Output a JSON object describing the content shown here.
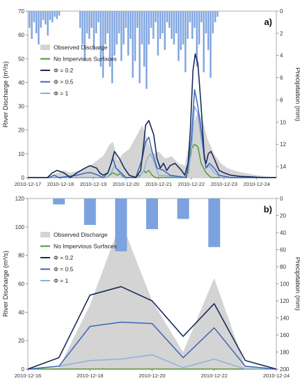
{
  "chart_data": [
    {
      "type": "line",
      "panel_label": "a)",
      "ylabel": "River Discharge (m³/s)",
      "y2label": "Precipitation (mm)",
      "ylim": [
        0,
        70
      ],
      "y_ticks": [
        0,
        10,
        20,
        30,
        40,
        50,
        60,
        70
      ],
      "y2lim": [
        15,
        0
      ],
      "y2_ticks": [
        0,
        2,
        4,
        6,
        8,
        10,
        12,
        14
      ],
      "xlim": [
        17,
        24.6
      ],
      "x_ticks": [
        17,
        18,
        19,
        20,
        21,
        22,
        23,
        24
      ],
      "x_tick_labels": [
        "2010-12-17",
        "2010-12-18",
        "2010-12-19",
        "2010-12-20",
        "2010-12-21",
        "2010-12-22",
        "2010-12-23",
        "2010-12-24"
      ],
      "legend": "upper-left",
      "colors": {
        "observed": "#d4d4d4",
        "no_impervious": "#4a9a2a",
        "phi02": "#1a2a5a",
        "phi05": "#3a66b8",
        "phi1": "#8aaee0",
        "precip": "#7ca3df"
      },
      "series": [
        {
          "name": "Observed Discharge",
          "style": "area",
          "x": [
            17,
            17.6,
            17.9,
            18.1,
            18.3,
            18.6,
            18.9,
            19.1,
            19.3,
            19.5,
            19.6,
            19.75,
            19.9,
            20.1,
            20.3,
            20.5,
            20.7,
            20.85,
            21.0,
            21.2,
            21.4,
            21.6,
            21.8,
            21.95,
            22.05,
            22.2,
            22.35,
            22.5,
            22.7,
            22.9,
            23.1,
            23.3,
            23.6,
            24.0,
            24.6
          ],
          "y": [
            0,
            0,
            2,
            3,
            2,
            3,
            5,
            7,
            9,
            14,
            15,
            7,
            10,
            12,
            17,
            22,
            14,
            10,
            11,
            8,
            9,
            6,
            5,
            15,
            22,
            28,
            24,
            16,
            10,
            6,
            4,
            3,
            2,
            1,
            0
          ]
        },
        {
          "name": "No Impervious Surfaces",
          "x": [
            17,
            19.4,
            19.5,
            19.6,
            19.75,
            19.85,
            19.95,
            20.2,
            20.45,
            20.55,
            20.6,
            20.7,
            20.8,
            20.9,
            21.15,
            21.8,
            21.9,
            22.0,
            22.1,
            22.2,
            22.3,
            22.45,
            22.6,
            22.9,
            24.6
          ],
          "y": [
            0,
            0,
            1,
            2,
            1,
            2,
            0,
            0,
            1,
            3,
            2,
            3,
            1,
            0,
            0,
            0,
            2,
            12,
            14,
            13,
            6,
            2,
            0,
            0,
            0
          ]
        },
        {
          "name": "Φ = 0.2",
          "x": [
            17,
            17.3,
            17.6,
            17.75,
            17.9,
            18.1,
            18.3,
            18.5,
            18.75,
            18.9,
            19.1,
            19.2,
            19.3,
            19.45,
            19.55,
            19.65,
            19.8,
            19.95,
            20.1,
            20.3,
            20.45,
            20.55,
            20.6,
            20.7,
            20.85,
            20.95,
            21.05,
            21.15,
            21.25,
            21.35,
            21.5,
            21.7,
            21.8,
            21.9,
            21.97,
            22.05,
            22.12,
            22.2,
            22.3,
            22.4,
            22.45,
            22.52,
            22.6,
            22.7,
            22.85,
            23.0,
            23.2,
            23.5,
            23.8,
            24.2,
            24.6
          ],
          "y": [
            0,
            0,
            0,
            2,
            3,
            2,
            0,
            2,
            4,
            5,
            4,
            2,
            1,
            2,
            6,
            11,
            8,
            4,
            1,
            0,
            3,
            15,
            22,
            24,
            18,
            8,
            4,
            6,
            3,
            5,
            6,
            3,
            1,
            6,
            20,
            45,
            52,
            48,
            30,
            8,
            6,
            10,
            11,
            8,
            3,
            2,
            1,
            0.5,
            0.3,
            0,
            0
          ]
        },
        {
          "name": "Φ = 0.5",
          "x": [
            17,
            17.65,
            17.8,
            17.95,
            18.5,
            18.8,
            18.95,
            19.15,
            19.3,
            19.45,
            19.6,
            19.7,
            19.85,
            20.0,
            20.3,
            20.5,
            20.6,
            20.7,
            20.8,
            20.95,
            21.15,
            21.25,
            21.35,
            21.85,
            22.0,
            22.1,
            22.2,
            22.3,
            22.45,
            22.55,
            22.7,
            22.85,
            23.2,
            24.6
          ],
          "y": [
            0,
            0,
            1,
            0,
            1,
            2,
            2,
            1,
            0,
            2,
            8,
            4,
            2,
            0,
            0,
            8,
            15,
            17,
            11,
            4,
            3,
            2,
            1,
            0,
            16,
            37,
            30,
            20,
            4,
            6,
            4,
            1,
            0,
            0
          ]
        },
        {
          "name": "Φ = 1",
          "x": [
            17,
            19.4,
            19.55,
            19.65,
            19.75,
            19.9,
            20.4,
            20.55,
            20.65,
            20.75,
            20.85,
            21.0,
            21.85,
            22.0,
            22.1,
            22.2,
            22.3,
            22.45,
            22.55,
            22.7,
            22.9,
            24.6
          ],
          "y": [
            0,
            0,
            2,
            5,
            3,
            0,
            0,
            3,
            8,
            10,
            7,
            1,
            0,
            10,
            30,
            27,
            16,
            4,
            5,
            2,
            0,
            0
          ]
        },
        {
          "name": "Precipitation",
          "style": "bars-inverted",
          "x": [
            17.05,
            17.12,
            17.19,
            17.26,
            17.33,
            17.4,
            17.47,
            17.54,
            17.61,
            17.68,
            17.75,
            17.82,
            17.89,
            17.96,
            18.6,
            18.67,
            18.74,
            18.81,
            18.88,
            18.95,
            19.02,
            19.09,
            19.16,
            19.23,
            19.3,
            19.37,
            19.44,
            19.51,
            19.58,
            19.65,
            19.72,
            19.79,
            19.86,
            19.93,
            20.0,
            20.07,
            20.14,
            20.21,
            20.28,
            20.35,
            20.42,
            20.49,
            20.56,
            20.63,
            20.7,
            20.77,
            20.84,
            20.91,
            20.98,
            21.05,
            21.12,
            21.19,
            21.26,
            21.33,
            21.4,
            21.47,
            21.54,
            21.61,
            21.68,
            21.75,
            21.82,
            21.89,
            21.96,
            22.03,
            22.1,
            22.17,
            22.24,
            22.31,
            22.38,
            22.45,
            22.52,
            22.59,
            22.66,
            22.73,
            22.8
          ],
          "y": [
            1.5,
            2.5,
            1.0,
            2.0,
            3.0,
            1.5,
            0.8,
            1.2,
            2.2,
            0.8,
            1.0,
            0.5,
            0.7,
            0.4,
            1.5,
            3.0,
            4.5,
            2.0,
            2.5,
            1.5,
            3.5,
            2.0,
            1.0,
            5.0,
            6.0,
            3.0,
            2.0,
            5.0,
            6.5,
            4.0,
            3.0,
            2.0,
            4.5,
            3.0,
            1.5,
            4.0,
            2.5,
            6.0,
            4.5,
            1.5,
            6.5,
            3.0,
            5.0,
            7.0,
            3.0,
            1.5,
            2.5,
            1.0,
            4.0,
            2.5,
            2.0,
            3.5,
            1.0,
            1.5,
            2.5,
            3.0,
            2.0,
            4.5,
            3.5,
            3.0,
            5.5,
            2.5,
            1.0,
            2.5,
            1.5,
            5.0,
            3.0,
            1.0,
            5.5,
            2.0,
            3.5,
            6.0,
            2.0,
            1.0,
            0.5
          ]
        }
      ]
    },
    {
      "type": "line",
      "panel_label": "b)",
      "ylabel": "River Discharge (m³/s)",
      "y2label": "Precipitation (mm)",
      "ylim": [
        0,
        120
      ],
      "y_ticks": [
        0,
        20,
        40,
        60,
        80,
        100,
        120
      ],
      "y2lim": [
        200,
        0
      ],
      "y2_ticks": [
        0,
        20,
        40,
        60,
        80,
        100,
        120,
        140,
        160,
        180,
        200
      ],
      "xlim": [
        16,
        24
      ],
      "x_ticks": [
        16,
        18,
        20,
        22,
        24
      ],
      "x_tick_labels": [
        "2010-12-16",
        "2010-12-18",
        "2010-12-20",
        "2010-12-22",
        "2010-12-24"
      ],
      "legend": "upper-left",
      "colors": {
        "observed": "#d4d4d4",
        "no_impervious": "#4a9a2a",
        "phi02": "#1a2a5a",
        "phi05": "#3a66b8",
        "phi1": "#8aaee0",
        "precip": "#7ca3df"
      },
      "series": [
        {
          "name": "Observed Discharge",
          "style": "area",
          "x": [
            16,
            17,
            18,
            19,
            20,
            21,
            22,
            23,
            24
          ],
          "y": [
            0,
            1,
            45,
            104,
            48,
            12,
            64,
            2,
            0
          ]
        },
        {
          "name": "No Impervious Surfaces",
          "x": [
            16,
            17,
            18,
            19,
            20,
            21,
            22,
            23,
            24
          ],
          "y": [
            0,
            0,
            0,
            0,
            0,
            0,
            0,
            0,
            0
          ]
        },
        {
          "name": "Φ = 0.2",
          "x": [
            16,
            17,
            18,
            19,
            20,
            21,
            22,
            23,
            24
          ],
          "y": [
            0,
            8,
            52,
            58,
            48,
            23,
            46,
            6,
            0
          ]
        },
        {
          "name": "Φ = 0.5",
          "x": [
            16,
            17,
            18,
            19,
            20,
            21,
            22,
            23,
            24
          ],
          "y": [
            0,
            2,
            30,
            33,
            32,
            8,
            29,
            2,
            0
          ]
        },
        {
          "name": "Φ = 1",
          "x": [
            16,
            17,
            18,
            19,
            20,
            21,
            22,
            23,
            24
          ],
          "y": [
            0,
            2,
            6,
            7,
            10,
            1,
            7,
            0,
            0
          ]
        },
        {
          "name": "Precipitation",
          "style": "bars-inverted",
          "x": [
            17,
            18,
            19,
            20,
            21,
            22
          ],
          "y": [
            7,
            31,
            62,
            36,
            24,
            57
          ]
        }
      ]
    }
  ]
}
